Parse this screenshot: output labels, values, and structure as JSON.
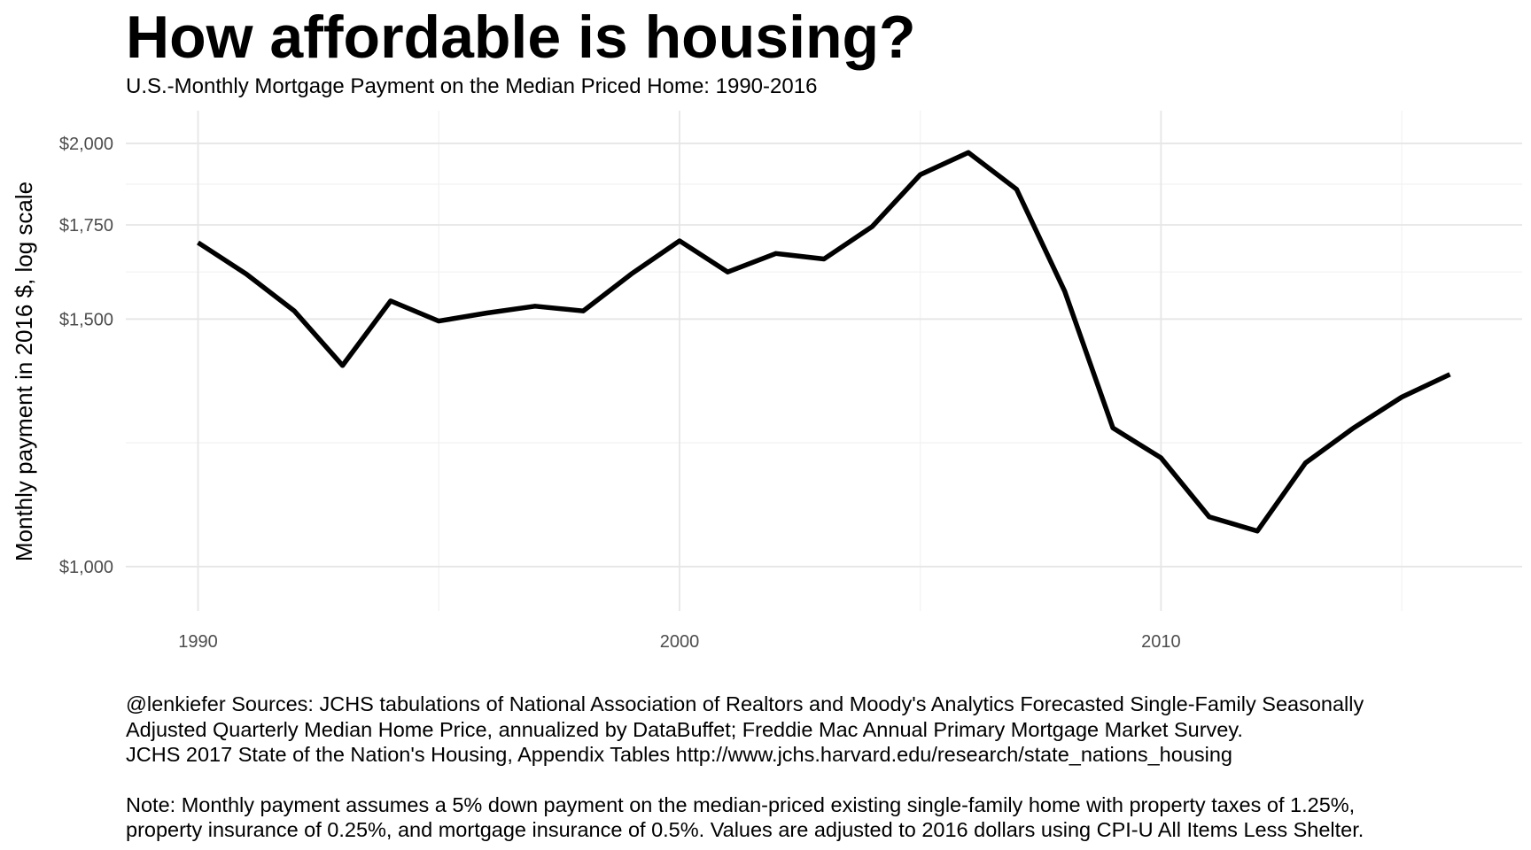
{
  "chart_data": {
    "type": "line",
    "title": "How affordable is housing?",
    "subtitle": "U.S.-Monthly Mortgage Payment on the Median Priced Home: 1990-2016",
    "xlabel": "",
    "ylabel": "Monthly payment in 2016 $, log scale",
    "y_scale": "log",
    "xlim": [
      1988.5,
      2017.5
    ],
    "ylim": [
      930,
      2110
    ],
    "x_ticks": [
      1990,
      2000,
      2010
    ],
    "x_tick_labels": [
      "1990",
      "2000",
      "2010"
    ],
    "y_ticks": [
      1000,
      1500,
      1750,
      2000
    ],
    "y_tick_labels": [
      "$1,000",
      "$1,500",
      "$1,750",
      "$2,000"
    ],
    "grid": true,
    "series": [
      {
        "color": "#000000",
        "x": [
          1990,
          1991,
          1992,
          1993,
          1994,
          1995,
          1996,
          1997,
          1998,
          1999,
          2000,
          2001,
          2002,
          2003,
          2004,
          2005,
          2006,
          2007,
          2008,
          2009,
          2010,
          2011,
          2012,
          2013,
          2014,
          2015,
          2016
        ],
        "values": [
          1700,
          1615,
          1520,
          1390,
          1545,
          1495,
          1515,
          1532,
          1520,
          1615,
          1705,
          1620,
          1670,
          1655,
          1745,
          1900,
          1970,
          1855,
          1570,
          1255,
          1195,
          1085,
          1060,
          1185,
          1255,
          1320,
          1370
        ]
      }
    ]
  },
  "caption_lines": [
    "@lenkiefer Sources: JCHS tabulations of National Association of Realtors and Moody's Analytics Forecasted Single-Family Seasonally",
    "Adjusted Quarterly Median Home Price, annualized by DataBuffet; Freddie Mac Annual Primary Mortgage Market Survey.",
    "JCHS 2017 State of the Nation's Housing, Appendix Tables http://www.jchs.harvard.edu/research/state_nations_housing"
  ],
  "note_lines": [
    "Note: Monthly payment assumes a 5% down payment on the median-priced existing single-family home with property taxes of 1.25%,",
    "property insurance of 0.25%, and mortgage insurance of 0.5%. Values are adjusted to 2016 dollars using CPI-U All Items Less Shelter."
  ]
}
